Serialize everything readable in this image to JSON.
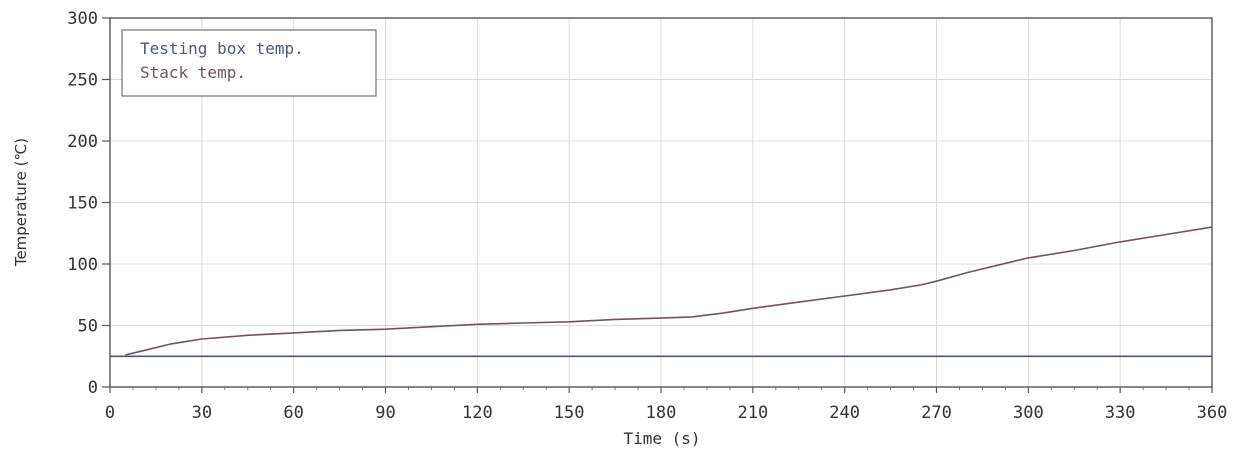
{
  "chart_data": {
    "type": "line",
    "xlabel": "Time (s)",
    "ylabel": "Temperature (℃)",
    "xlim": [
      0,
      360
    ],
    "ylim": [
      0,
      300
    ],
    "x_ticks": [
      0,
      30,
      60,
      90,
      120,
      150,
      180,
      210,
      240,
      270,
      300,
      330,
      360
    ],
    "y_ticks": [
      0,
      50,
      100,
      150,
      200,
      250,
      300
    ],
    "grid": true,
    "legend_position": "top-left",
    "series": [
      {
        "name": "Testing box temp.",
        "color": "#4a5a78",
        "points": [
          [
            0,
            25
          ],
          [
            60,
            25
          ],
          [
            120,
            25
          ],
          [
            180,
            25
          ],
          [
            240,
            25
          ],
          [
            300,
            25
          ],
          [
            360,
            25
          ]
        ]
      },
      {
        "name": "Stack temp.",
        "color": "#6e5560",
        "points": [
          [
            5,
            26
          ],
          [
            10,
            29
          ],
          [
            20,
            35
          ],
          [
            30,
            39
          ],
          [
            45,
            42
          ],
          [
            60,
            44
          ],
          [
            75,
            46
          ],
          [
            90,
            47
          ],
          [
            105,
            49
          ],
          [
            120,
            51
          ],
          [
            135,
            52
          ],
          [
            150,
            53
          ],
          [
            165,
            55
          ],
          [
            180,
            56
          ],
          [
            190,
            57
          ],
          [
            200,
            60
          ],
          [
            210,
            64
          ],
          [
            225,
            69
          ],
          [
            240,
            74
          ],
          [
            255,
            79
          ],
          [
            265,
            83
          ],
          [
            270,
            86
          ],
          [
            280,
            93
          ],
          [
            290,
            99
          ],
          [
            300,
            105
          ],
          [
            315,
            111
          ],
          [
            330,
            118
          ],
          [
            345,
            124
          ],
          [
            360,
            130
          ]
        ]
      }
    ]
  }
}
